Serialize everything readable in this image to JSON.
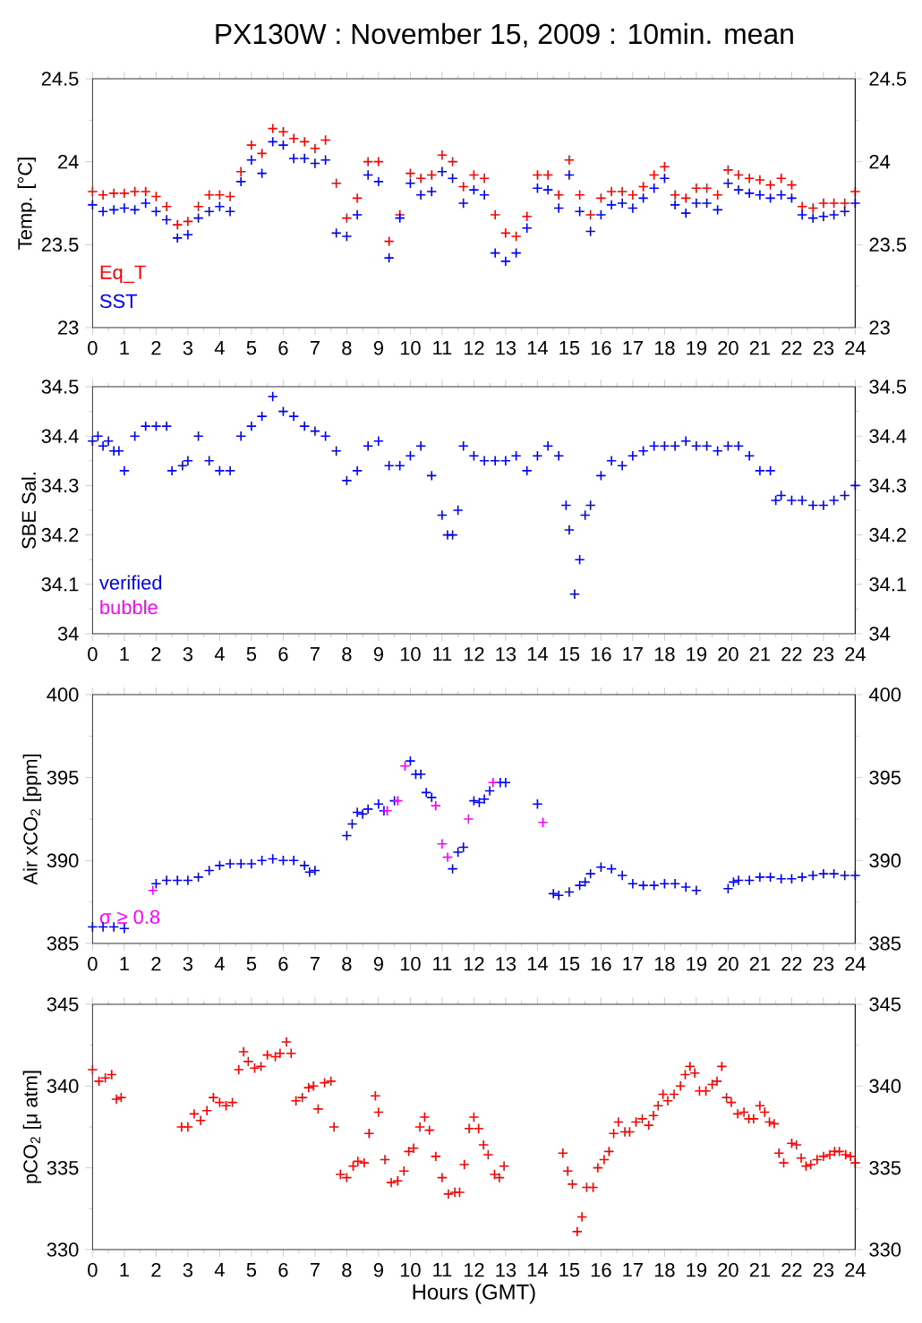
{
  "chart_data": [
    {
      "type": "scatter",
      "title": "PX130W : November 15, 2009 : 10min. mean",
      "ylabel": "Temp. [°C]",
      "marker": "cross",
      "legend": "bottom left",
      "xlim": [
        0,
        24
      ],
      "xticks": [
        0,
        1,
        2,
        3,
        4,
        5,
        6,
        7,
        8,
        9,
        10,
        11,
        12,
        13,
        14,
        15,
        16,
        17,
        18,
        19,
        20,
        21,
        22,
        23,
        24
      ],
      "ylim": [
        23,
        24.5
      ],
      "yticks": [
        23,
        23.5,
        24,
        24.5
      ],
      "y2lim": [
        23,
        24.5
      ],
      "y2ticks": [
        23,
        23.5,
        24,
        24.5
      ],
      "x": [
        0,
        0.33,
        0.67,
        1,
        1.33,
        1.67,
        2,
        2.33,
        2.67,
        3,
        3.33,
        3.67,
        4,
        4.33,
        4.67,
        5,
        5.33,
        5.67,
        6,
        6.33,
        6.67,
        7,
        7.33,
        7.67,
        8,
        8.33,
        8.67,
        9,
        9.33,
        9.67,
        10,
        10.33,
        10.67,
        11,
        11.33,
        11.67,
        12,
        12.33,
        12.67,
        13,
        13.33,
        13.67,
        14,
        14.33,
        14.67,
        15,
        15.33,
        15.67,
        16,
        16.33,
        16.67,
        17,
        17.33,
        17.67,
        18,
        18.33,
        18.67,
        19,
        19.33,
        19.67,
        20,
        20.33,
        20.67,
        21,
        21.33,
        21.67,
        22,
        22.33,
        22.67,
        23,
        23.33,
        23.67,
        24
      ],
      "series": [
        {
          "name": "Eq_T",
          "color": "#ff0000",
          "values": [
            23.82,
            23.8,
            23.81,
            23.81,
            23.82,
            23.82,
            23.79,
            23.73,
            23.62,
            23.64,
            23.73,
            23.8,
            23.8,
            23.79,
            23.94,
            24.1,
            24.05,
            24.2,
            24.18,
            24.14,
            24.12,
            24.08,
            24.13,
            23.87,
            23.66,
            23.78,
            24.0,
            24.0,
            23.52,
            23.68,
            23.93,
            23.9,
            23.92,
            24.04,
            24.0,
            23.85,
            23.92,
            23.9,
            23.68,
            23.57,
            23.55,
            23.67,
            23.92,
            23.92,
            23.8,
            24.01,
            23.8,
            23.68,
            23.78,
            23.82,
            23.82,
            23.8,
            23.85,
            23.92,
            23.97,
            23.8,
            23.78,
            23.84,
            23.84,
            23.8,
            23.95,
            23.92,
            23.9,
            23.89,
            23.86,
            23.9,
            23.86,
            23.73,
            23.72,
            23.75,
            23.75,
            23.75,
            23.82
          ]
        },
        {
          "name": "SST",
          "color": "#0000ff",
          "values": [
            23.74,
            23.7,
            23.71,
            23.72,
            23.71,
            23.75,
            23.7,
            23.65,
            23.54,
            23.56,
            23.66,
            23.7,
            23.73,
            23.7,
            23.88,
            24.01,
            23.93,
            24.12,
            24.1,
            24.02,
            24.02,
            23.99,
            24.01,
            23.57,
            23.55,
            23.68,
            23.92,
            23.88,
            23.42,
            23.66,
            23.87,
            23.8,
            23.82,
            23.94,
            23.9,
            23.75,
            23.83,
            23.8,
            23.45,
            23.4,
            23.45,
            23.6,
            23.84,
            23.83,
            23.72,
            23.92,
            23.7,
            23.58,
            23.68,
            23.74,
            23.75,
            23.72,
            23.78,
            23.84,
            23.9,
            23.74,
            23.69,
            23.75,
            23.75,
            23.71,
            23.87,
            23.83,
            23.81,
            23.8,
            23.78,
            23.8,
            23.78,
            23.68,
            23.66,
            23.67,
            23.68,
            23.7,
            23.75
          ]
        }
      ]
    },
    {
      "type": "scatter",
      "ylabel": "SBE Sal.",
      "marker": "cross",
      "legend": "bottom left",
      "xlim": [
        0,
        24
      ],
      "xticks": [
        0,
        1,
        2,
        3,
        4,
        5,
        6,
        7,
        8,
        9,
        10,
        11,
        12,
        13,
        14,
        15,
        16,
        17,
        18,
        19,
        20,
        21,
        22,
        23,
        24
      ],
      "ylim": [
        34,
        34.5
      ],
      "yticks": [
        34,
        34.1,
        34.2,
        34.3,
        34.4,
        34.5
      ],
      "y2lim": [
        34,
        34.5
      ],
      "y2ticks": [
        34,
        34.1,
        34.2,
        34.3,
        34.4,
        34.5
      ],
      "series": [
        {
          "name": "verified",
          "color": "#0000ff",
          "x": [
            0,
            0.17,
            0.33,
            0.5,
            0.67,
            0.83,
            1,
            1.33,
            1.67,
            2,
            2.33,
            2.5,
            2.83,
            3,
            3.33,
            3.67,
            4,
            4.33,
            4.67,
            5,
            5.33,
            5.67,
            6,
            6.33,
            6.67,
            7,
            7.33,
            7.67,
            8,
            8.33,
            8.67,
            9,
            9.33,
            9.67,
            10,
            10.33,
            10.67,
            11,
            11.17,
            11.33,
            11.5,
            11.67,
            12,
            12.33,
            12.67,
            13,
            13.33,
            13.67,
            14,
            14.33,
            14.67,
            14.9,
            15,
            15.17,
            15.33,
            15.5,
            15.67,
            16,
            16.33,
            16.67,
            17,
            17.33,
            17.67,
            18,
            18.33,
            18.67,
            19,
            19.33,
            19.67,
            20,
            20.33,
            20.67,
            21,
            21.33,
            21.5,
            21.67,
            22,
            22.33,
            22.67,
            23,
            23.33,
            23.67,
            24
          ],
          "values": [
            34.39,
            34.4,
            34.38,
            34.39,
            34.37,
            34.37,
            34.33,
            34.4,
            34.42,
            34.42,
            34.42,
            34.33,
            34.34,
            34.35,
            34.4,
            34.35,
            34.33,
            34.33,
            34.4,
            34.42,
            34.44,
            34.48,
            34.45,
            34.44,
            34.42,
            34.41,
            34.4,
            34.37,
            34.31,
            34.33,
            34.38,
            34.39,
            34.34,
            34.34,
            34.36,
            34.38,
            34.32,
            34.24,
            34.2,
            34.2,
            34.25,
            34.38,
            34.36,
            34.35,
            34.35,
            34.35,
            34.36,
            34.33,
            34.36,
            34.38,
            34.36,
            34.26,
            34.21,
            34.08,
            34.15,
            34.24,
            34.26,
            34.32,
            34.35,
            34.34,
            34.36,
            34.37,
            34.38,
            34.38,
            34.38,
            34.39,
            34.38,
            34.38,
            34.37,
            34.38,
            34.38,
            34.36,
            34.33,
            34.33,
            34.27,
            34.28,
            34.27,
            34.27,
            34.26,
            34.26,
            34.27,
            34.28,
            34.3
          ]
        },
        {
          "name": "bubble",
          "color": "#ff00ff"
        }
      ]
    },
    {
      "type": "scatter",
      "ylabel": "Air xCO$_{2}$ [ppm]",
      "marker": "cross",
      "legend": "bottom left",
      "xlim": [
        0,
        24
      ],
      "xticks": [
        0,
        1,
        2,
        3,
        4,
        5,
        6,
        7,
        8,
        9,
        10,
        11,
        12,
        13,
        14,
        15,
        16,
        17,
        18,
        19,
        20,
        21,
        22,
        23,
        24
      ],
      "ylim": [
        385,
        400
      ],
      "yticks": [
        385,
        390,
        395,
        400
      ],
      "y2lim": [
        385,
        400
      ],
      "y2ticks": [
        385,
        390,
        395,
        400
      ],
      "series": [
        {
          "color": "#0000ff",
          "x": [
            0,
            0.33,
            0.67,
            1,
            2,
            2.33,
            2.67,
            3,
            3.33,
            3.67,
            4,
            4.33,
            4.67,
            5,
            5.33,
            5.67,
            6,
            6.33,
            6.67,
            6.83,
            7,
            8,
            8.17,
            8.33,
            8.5,
            8.67,
            9,
            9.17,
            9.5,
            10,
            10.17,
            10.33,
            10.5,
            10.67,
            11.33,
            11.5,
            11.67,
            12,
            12.17,
            12.33,
            12.5,
            12.83,
            13,
            14,
            14.5,
            14.67,
            15,
            15.33,
            15.5,
            15.67,
            16,
            16.33,
            16.67,
            17,
            17.33,
            17.67,
            18,
            18.33,
            18.67,
            19,
            20,
            20.17,
            20.33,
            20.67,
            21,
            21.33,
            21.67,
            22,
            22.33,
            22.67,
            23,
            23.33,
            23.67,
            24
          ],
          "values": [
            386.0,
            386.0,
            386.0,
            385.9,
            388.6,
            388.8,
            388.8,
            388.8,
            389.0,
            389.4,
            389.7,
            389.8,
            389.8,
            389.8,
            390.0,
            390.1,
            390.0,
            390.0,
            389.7,
            389.3,
            389.4,
            391.5,
            392.2,
            392.9,
            392.8,
            393.1,
            393.4,
            393.0,
            393.6,
            396.0,
            395.2,
            395.2,
            394.1,
            393.8,
            389.5,
            390.5,
            390.8,
            393.6,
            393.5,
            393.7,
            394.2,
            394.7,
            394.7,
            393.4,
            388.0,
            387.9,
            388.1,
            388.5,
            388.7,
            389.2,
            389.6,
            389.5,
            389.1,
            388.6,
            388.5,
            388.5,
            388.6,
            388.6,
            388.4,
            388.2,
            388.3,
            388.7,
            388.8,
            388.8,
            389.0,
            389.0,
            388.9,
            388.9,
            389.0,
            389.1,
            389.2,
            389.2,
            389.1,
            389.1
          ]
        },
        {
          "name": "σ ≥ 0.8",
          "color": "#ff00ff",
          "x": [
            1.9,
            9.27,
            9.6,
            9.83,
            10.8,
            11.0,
            11.17,
            11.83,
            12.6,
            14.17
          ],
          "values": [
            388.2,
            393.0,
            393.6,
            395.7,
            393.3,
            391.0,
            390.2,
            392.5,
            394.7,
            392.3
          ]
        }
      ]
    },
    {
      "type": "scatter",
      "ylabel": "pCO$_{2}$ [μ atm]",
      "xlabel": "Hours (GMT)",
      "marker": "cross",
      "xlim": [
        0,
        24
      ],
      "xticks": [
        0,
        1,
        2,
        3,
        4,
        5,
        6,
        7,
        8,
        9,
        10,
        11,
        12,
        13,
        14,
        15,
        16,
        17,
        18,
        19,
        20,
        21,
        22,
        23,
        24
      ],
      "ylim": [
        330,
        345
      ],
      "yticks": [
        330,
        335,
        340,
        345
      ],
      "y2lim": [
        330,
        345
      ],
      "y2ticks": [
        330,
        335,
        340,
        345
      ],
      "series": [
        {
          "color": "#ff0000",
          "x": [
            0,
            0.2,
            0.4,
            0.6,
            0.75,
            0.9,
            2.8,
            3,
            3.2,
            3.4,
            3.6,
            3.8,
            4,
            4.2,
            4.4,
            4.6,
            4.75,
            4.9,
            5.1,
            5.3,
            5.5,
            5.75,
            5.9,
            6.1,
            6.25,
            6.4,
            6.6,
            6.8,
            6.95,
            7.1,
            7.3,
            7.5,
            7.6,
            7.8,
            8,
            8.2,
            8.35,
            8.55,
            8.7,
            8.9,
            9,
            9.2,
            9.4,
            9.6,
            9.8,
            9.95,
            10.1,
            10.3,
            10.45,
            10.6,
            10.8,
            11,
            11.2,
            11.4,
            11.55,
            11.7,
            11.85,
            12,
            12.15,
            12.3,
            12.45,
            12.65,
            12.8,
            12.95,
            14.8,
            14.95,
            15.1,
            15.25,
            15.4,
            15.55,
            15.75,
            15.9,
            16.1,
            16.25,
            16.4,
            16.55,
            16.75,
            16.9,
            17.1,
            17.3,
            17.5,
            17.65,
            17.8,
            17.95,
            18.1,
            18.3,
            18.5,
            18.65,
            18.8,
            18.95,
            19.1,
            19.3,
            19.5,
            19.65,
            19.8,
            19.95,
            20.1,
            20.3,
            20.5,
            20.65,
            20.8,
            21,
            21.15,
            21.3,
            21.45,
            21.6,
            21.75,
            22,
            22.15,
            22.3,
            22.45,
            22.6,
            22.8,
            23,
            23.2,
            23.35,
            23.5,
            23.7,
            23.85,
            24
          ],
          "values": [
            341.0,
            340.3,
            340.5,
            340.7,
            339.2,
            339.3,
            337.5,
            337.5,
            338.3,
            337.9,
            338.5,
            339.3,
            339.0,
            338.8,
            339.0,
            341.0,
            342.1,
            341.5,
            341.1,
            341.2,
            341.9,
            341.8,
            342.0,
            342.7,
            342.0,
            339.1,
            339.3,
            339.9,
            340.0,
            338.6,
            340.2,
            340.3,
            337.5,
            334.6,
            334.4,
            335.1,
            335.4,
            335.3,
            337.1,
            339.4,
            338.4,
            335.5,
            334.1,
            334.2,
            334.8,
            336.0,
            336.2,
            337.5,
            338.1,
            337.3,
            335.7,
            334.4,
            333.4,
            333.5,
            333.5,
            335.2,
            337.4,
            338.1,
            337.4,
            336.4,
            335.8,
            334.6,
            334.4,
            335.1,
            335.9,
            334.8,
            334.0,
            331.1,
            332.0,
            333.8,
            333.8,
            335.0,
            335.5,
            336.0,
            337.1,
            337.8,
            337.2,
            337.2,
            337.8,
            338.0,
            337.6,
            338.2,
            338.8,
            339.5,
            339.1,
            339.5,
            340.0,
            340.7,
            341.2,
            340.8,
            339.7,
            339.7,
            340.1,
            340.3,
            341.2,
            339.3,
            339.0,
            338.3,
            338.4,
            338.0,
            338.0,
            338.8,
            338.4,
            337.8,
            337.7,
            335.9,
            335.3,
            336.5,
            336.4,
            335.6,
            335.1,
            335.2,
            335.5,
            335.7,
            335.8,
            336.0,
            336.0,
            335.8,
            335.7,
            335.3
          ]
        }
      ]
    }
  ]
}
